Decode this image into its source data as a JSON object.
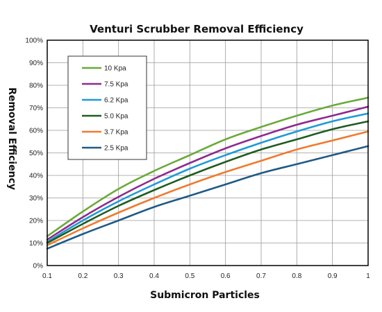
{
  "chart_data": {
    "type": "line",
    "title": "Venturi Scrubber Removal Efficiency",
    "xlabel": "Submicron Particles",
    "ylabel": "Removal Efficiency",
    "xlim": [
      0.1,
      1.0
    ],
    "ylim": [
      0,
      100
    ],
    "x_ticks": [
      "0.1",
      "0.2",
      "0.3",
      "0.4",
      "0.5",
      "0.6",
      "0.7",
      "0.8",
      "0.9",
      "1"
    ],
    "y_ticks": [
      "0%",
      "10%",
      "20%",
      "30%",
      "40%",
      "50%",
      "60%",
      "70%",
      "80%",
      "90%",
      "100%"
    ],
    "grid": true,
    "legend_position": "top-left",
    "x": [
      0.1,
      0.2,
      0.3,
      0.4,
      0.5,
      0.6,
      0.7,
      0.8,
      0.9,
      1.0
    ],
    "series": [
      {
        "name": "10  Kpa",
        "color": "#6aaa3a",
        "values": [
          13,
          24,
          34,
          42,
          49,
          56,
          61.5,
          66.5,
          71,
          74.5
        ]
      },
      {
        "name": "7.5 Kpa",
        "color": "#8e2a8e",
        "values": [
          11.5,
          21.5,
          30.5,
          38.5,
          45.5,
          52,
          57.5,
          62.5,
          66.5,
          70.5
        ]
      },
      {
        "name": "6.2 Kpa",
        "color": "#1e9ad6",
        "values": [
          10.5,
          20,
          28.5,
          36,
          43,
          49,
          54.5,
          59.5,
          64,
          67.5
        ]
      },
      {
        "name": "5.0 Kpa",
        "color": "#1f5c1f",
        "values": [
          10,
          18.5,
          26.5,
          33.5,
          40,
          46,
          51.5,
          56,
          60.5,
          64
        ]
      },
      {
        "name": "3.7 Kpa",
        "color": "#f07a2e",
        "values": [
          9,
          16.5,
          23.5,
          30,
          36,
          41.5,
          46.5,
          51.5,
          55.5,
          59.5
        ]
      },
      {
        "name": "2.5 Kpa",
        "color": "#1f5a86",
        "values": [
          7.5,
          14,
          20,
          26,
          31,
          36,
          41,
          45,
          49,
          53
        ]
      }
    ]
  }
}
